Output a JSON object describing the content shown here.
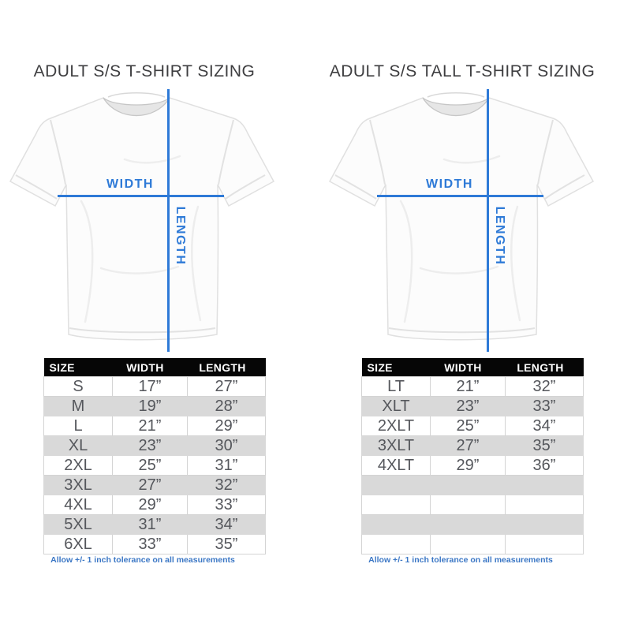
{
  "colors": {
    "accent_blue": "#2e7ad7",
    "footnote_blue": "#3b77c5",
    "table_header_bg": "#060606",
    "table_header_text": "#ffffff",
    "row_alt_bg": "#d9d9d9",
    "cell_text": "#55575c",
    "title_text": "#3e3e40"
  },
  "columns": [
    {
      "title": "ADULT S/S T-SHIRT SIZING",
      "diagram": {
        "width_label": "WIDTH",
        "length_label": "LENGTH"
      },
      "table": {
        "headers": [
          "SIZE",
          "WIDTH",
          "LENGTH"
        ],
        "rows": [
          [
            "S",
            "17”",
            "27”"
          ],
          [
            "M",
            "19”",
            "28”"
          ],
          [
            "L",
            "21”",
            "29”"
          ],
          [
            "XL",
            "23”",
            "30”"
          ],
          [
            "2XL",
            "25”",
            "31”"
          ],
          [
            "3XL",
            "27”",
            "32”"
          ],
          [
            "4XL",
            "29”",
            "33”"
          ],
          [
            "5XL",
            "31”",
            "34”"
          ],
          [
            "6XL",
            "33”",
            "35”"
          ]
        ]
      },
      "footnote": "Allow +/- 1 inch tolerance on all measurements"
    },
    {
      "title": "ADULT S/S TALL T-SHIRT SIZING",
      "diagram": {
        "width_label": "WIDTH",
        "length_label": "LENGTH"
      },
      "table": {
        "headers": [
          "SIZE",
          "WIDTH",
          "LENGTH"
        ],
        "rows": [
          [
            "LT",
            "21”",
            "32”"
          ],
          [
            "XLT",
            "23”",
            "33”"
          ],
          [
            "2XLT",
            "25”",
            "34”"
          ],
          [
            "3XLT",
            "27”",
            "35”"
          ],
          [
            "4XLT",
            "29”",
            "36”"
          ],
          [
            "",
            "",
            ""
          ],
          [
            "",
            "",
            ""
          ],
          [
            "",
            "",
            ""
          ],
          [
            "",
            "",
            ""
          ]
        ]
      },
      "footnote": "Allow +/- 1 inch tolerance on all measurements"
    }
  ],
  "chart_data": [
    {
      "type": "table",
      "title": "ADULT S/S T-SHIRT SIZING",
      "columns": [
        "SIZE",
        "WIDTH",
        "LENGTH"
      ],
      "rows": [
        [
          "S",
          "17”",
          "27”"
        ],
        [
          "M",
          "19”",
          "28”"
        ],
        [
          "L",
          "21”",
          "29”"
        ],
        [
          "XL",
          "23”",
          "30”"
        ],
        [
          "2XL",
          "25”",
          "31”"
        ],
        [
          "3XL",
          "27”",
          "32”"
        ],
        [
          "4XL",
          "29”",
          "33”"
        ],
        [
          "5XL",
          "31”",
          "34”"
        ],
        [
          "6XL",
          "33”",
          "35”"
        ]
      ],
      "note": "Allow +/- 1 inch tolerance on all measurements"
    },
    {
      "type": "table",
      "title": "ADULT S/S TALL T-SHIRT SIZING",
      "columns": [
        "SIZE",
        "WIDTH",
        "LENGTH"
      ],
      "rows": [
        [
          "LT",
          "21”",
          "32”"
        ],
        [
          "XLT",
          "23”",
          "33”"
        ],
        [
          "2XLT",
          "25”",
          "34”"
        ],
        [
          "3XLT",
          "27”",
          "35”"
        ],
        [
          "4XLT",
          "29”",
          "36”"
        ]
      ],
      "note": "Allow +/- 1 inch tolerance on all measurements"
    }
  ]
}
